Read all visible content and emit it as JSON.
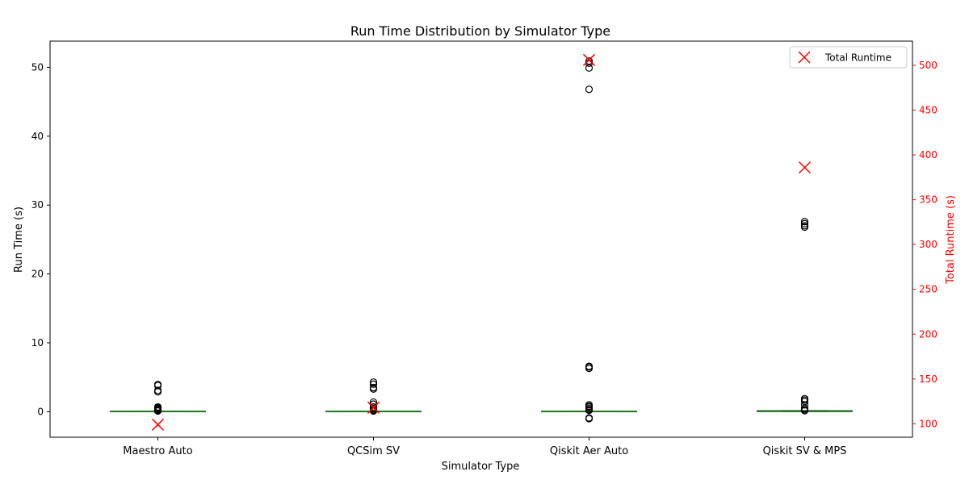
{
  "chart_data": {
    "type": "box",
    "title": "Run Time Distribution by Simulator Type",
    "xlabel": "Simulator Type",
    "ylabel": "Run Time (s)",
    "ylabel_right": "Total Runtime (s)",
    "categories": [
      "Maestro Auto",
      "QCSim SV",
      "Qiskit Aer Auto",
      "Qiskit SV & MPS"
    ],
    "ylim": [
      -3.7,
      53.8
    ],
    "yticks": [
      0,
      10,
      20,
      30,
      40,
      50
    ],
    "ylim_right": [
      85,
      527
    ],
    "yticks_right": [
      100,
      150,
      200,
      250,
      300,
      350,
      400,
      450,
      500
    ],
    "boxes": [
      {
        "category": "Maestro Auto",
        "q1": 0.0,
        "median": 0.05,
        "q3": 0.1,
        "whisker_low": 0.0,
        "whisker_high": 0.1,
        "outliers": [
          0.1,
          0.15,
          0.2,
          0.3,
          0.4,
          0.5,
          0.6,
          0.7,
          2.9,
          3.1,
          3.8,
          3.95
        ]
      },
      {
        "category": "QCSim SV",
        "q1": 0.0,
        "median": 0.05,
        "q3": 0.1,
        "whisker_low": 0.0,
        "whisker_high": 0.1,
        "outliers": [
          0.1,
          0.2,
          0.3,
          0.5,
          0.7,
          1.1,
          1.4,
          3.3,
          3.5,
          4.0,
          4.3
        ]
      },
      {
        "category": "Qiskit Aer Auto",
        "q1": 0.0,
        "median": 0.05,
        "q3": 0.1,
        "whisker_low": 0.0,
        "whisker_high": 0.1,
        "outliers": [
          -1.0,
          -0.9,
          0.2,
          0.3,
          0.5,
          0.7,
          0.8,
          1.0,
          6.3,
          6.5,
          6.6,
          46.8,
          49.9,
          50.6,
          50.9
        ]
      },
      {
        "category": "Qiskit SV & MPS",
        "q1": 0.0,
        "median": 0.05,
        "q3": 0.15,
        "whisker_low": 0.0,
        "whisker_high": 0.15,
        "outliers": [
          0.15,
          0.3,
          0.5,
          1.0,
          1.5,
          1.7,
          1.9,
          26.8,
          27.0,
          27.3,
          27.6
        ]
      }
    ],
    "series": [
      {
        "name": "Total Runtime",
        "axis": "right",
        "marker": "x",
        "color": "#ff0000",
        "values": [
          99,
          118,
          506,
          386
        ]
      }
    ],
    "legend": "top-right",
    "grid": false,
    "colors": {
      "axis": "#000000",
      "right_axis": "#ff0000",
      "median": "#2ca02c",
      "box": "#000000",
      "outlier": "#000000"
    }
  }
}
